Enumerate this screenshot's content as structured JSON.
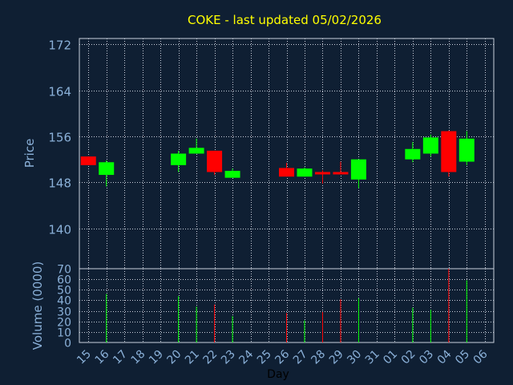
{
  "chart_data": {
    "type": "candlestick",
    "title": "COKE - last updated 05/02/2026",
    "xlabel": "Day",
    "price_panel": {
      "ylabel": "Price",
      "ylim": [
        133,
        173
      ],
      "yticks": [
        140,
        148,
        156,
        164,
        172
      ],
      "grid": true
    },
    "volume_panel": {
      "ylabel": "Volume (0000)",
      "ylim": [
        0,
        70
      ],
      "yticks": [
        0,
        10,
        20,
        30,
        40,
        50,
        60,
        70
      ],
      "grid": true
    },
    "x_tick_labels": [
      "15",
      "16",
      "17",
      "18",
      "19",
      "20",
      "21",
      "22",
      "23",
      "24",
      "25",
      "26",
      "27",
      "28",
      "29",
      "30",
      "31",
      "01",
      "02",
      "03",
      "04",
      "05",
      "06"
    ],
    "candles": [
      {
        "day": "15",
        "open": 152.5,
        "high": 152.5,
        "low": 151.0,
        "close": 151.0,
        "volume": null
      },
      {
        "day": "16",
        "open": 149.3,
        "high": 151.8,
        "low": 147.3,
        "close": 151.5,
        "volume": 46
      },
      {
        "day": "20",
        "open": 151.0,
        "high": 153.5,
        "low": 149.8,
        "close": 153.0,
        "volume": 44
      },
      {
        "day": "21",
        "open": 153.0,
        "high": 155.6,
        "low": 153.0,
        "close": 154.0,
        "volume": 34
      },
      {
        "day": "22",
        "open": 153.5,
        "high": 153.5,
        "low": 149.3,
        "close": 149.8,
        "volume": 36
      },
      {
        "day": "23",
        "open": 148.8,
        "high": 150.4,
        "low": 148.8,
        "close": 150.0,
        "volume": 25
      },
      {
        "day": "26",
        "open": 150.5,
        "high": 151.4,
        "low": 149.0,
        "close": 149.0,
        "volume": 28
      },
      {
        "day": "27",
        "open": 149.0,
        "high": 150.6,
        "low": 149.0,
        "close": 150.4,
        "volume": 21
      },
      {
        "day": "28",
        "open": 149.8,
        "high": 150.1,
        "low": 147.8,
        "close": 149.4,
        "volume": 29
      },
      {
        "day": "29",
        "open": 149.8,
        "high": 151.6,
        "low": 149.4,
        "close": 149.4,
        "volume": 41
      },
      {
        "day": "30",
        "open": 148.5,
        "high": 152.0,
        "low": 147.0,
        "close": 152.0,
        "volume": 42
      },
      {
        "day": "02",
        "open": 152.0,
        "high": 155.0,
        "low": 151.5,
        "close": 153.8,
        "volume": 33
      },
      {
        "day": "03",
        "open": 153.0,
        "high": 156.3,
        "low": 152.5,
        "close": 155.8,
        "volume": 31
      },
      {
        "day": "04",
        "open": 156.9,
        "high": 157.0,
        "low": 149.0,
        "close": 149.8,
        "volume": 70
      },
      {
        "day": "05",
        "open": 151.6,
        "high": 156.9,
        "low": 151.0,
        "close": 155.6,
        "volume": 59
      }
    ],
    "colors": {
      "background": "#0f1f33",
      "title": "#ffff00",
      "axis_text": "#8ab0d8",
      "frame": "#c8d0dc",
      "up": "#00ff00",
      "down": "#ff0000"
    }
  }
}
